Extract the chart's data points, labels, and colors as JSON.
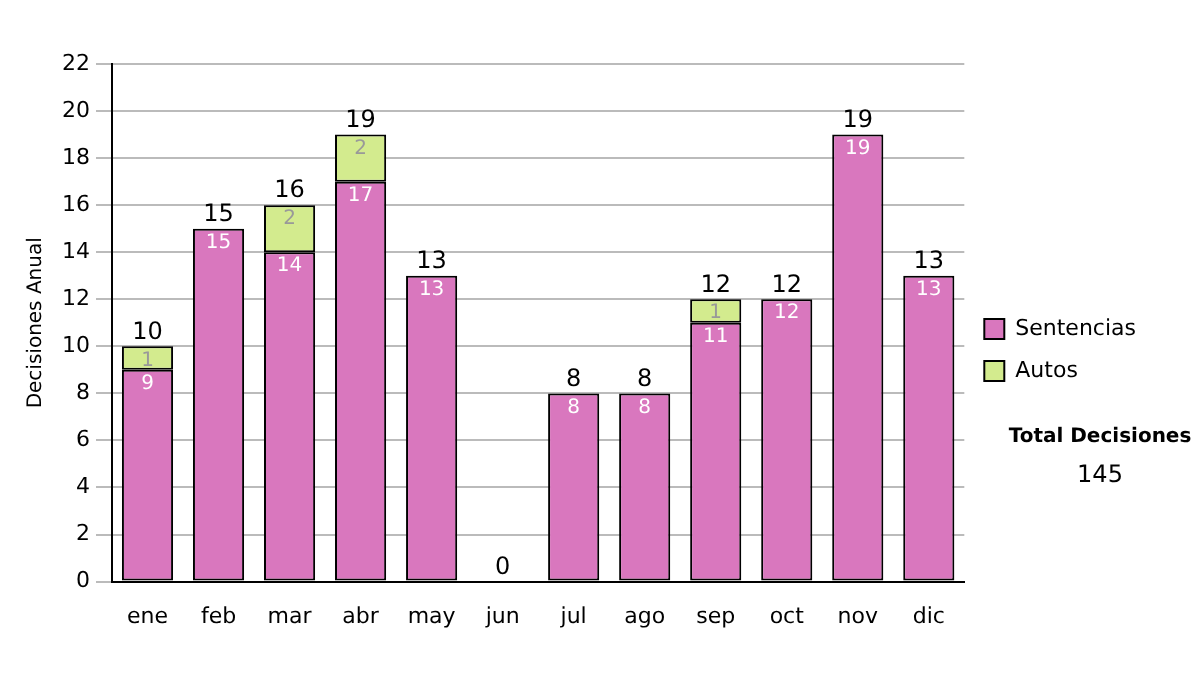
{
  "chart_data": {
    "type": "bar",
    "stacked": true,
    "ylabel": "Decisiones Anual",
    "categories": [
      "ene",
      "feb",
      "mar",
      "abr",
      "may",
      "jun",
      "jul",
      "ago",
      "sep",
      "oct",
      "nov",
      "dic"
    ],
    "series": [
      {
        "name": "Sentencias",
        "color": "#d977be",
        "values": [
          9,
          15,
          14,
          17,
          13,
          0,
          8,
          8,
          11,
          12,
          19,
          13
        ],
        "value_labels": [
          "9",
          "15",
          "14",
          "17",
          "13",
          null,
          "8",
          "8",
          "11",
          "12",
          "19",
          "13"
        ]
      },
      {
        "name": "Autos",
        "color": "#d3eb8e",
        "values": [
          1,
          0,
          2,
          2,
          0,
          0,
          0,
          0,
          1,
          0,
          0,
          0
        ],
        "value_labels": [
          "1",
          null,
          "2",
          "2",
          null,
          null,
          null,
          null,
          "1",
          null,
          null,
          null
        ]
      }
    ],
    "totals": [
      "10",
      "15",
      "16",
      "19",
      "13",
      "0",
      "8",
      "8",
      "12",
      "12",
      "19",
      "13"
    ],
    "ylim": [
      0,
      22
    ],
    "yticks": [
      0,
      2,
      4,
      6,
      8,
      10,
      12,
      14,
      16,
      18,
      20,
      22
    ],
    "grid": "y",
    "legend": "right",
    "annotations": [
      "Total Decisiones",
      "145"
    ]
  }
}
